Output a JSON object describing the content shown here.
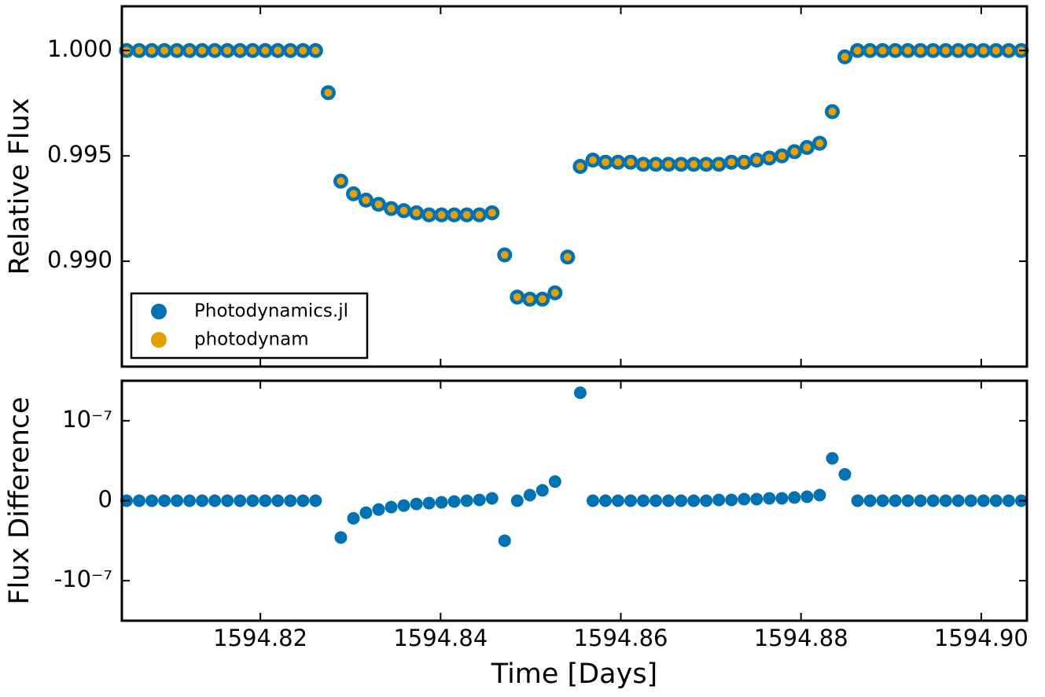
{
  "chart_data": [
    {
      "type": "scatter",
      "ylabel": "Relative Flux",
      "legend": "lower left",
      "xlim": [
        1594.80463,
        1594.90507
      ],
      "ylim": [
        0.985,
        1.0021
      ],
      "yticks": [
        {
          "value": 1.0,
          "label": "1.000"
        },
        {
          "value": 0.995,
          "label": "0.995"
        },
        {
          "value": 0.99,
          "label": "0.990"
        }
      ],
      "xticks": [
        1594.82,
        1594.84,
        1594.86,
        1594.88,
        1594.9
      ],
      "x": [
        1594.80515,
        1594.80655,
        1594.80795,
        1594.80935,
        1594.81074,
        1594.81214,
        1594.81354,
        1594.81494,
        1594.81634,
        1594.81774,
        1594.81914,
        1594.82054,
        1594.82193,
        1594.82333,
        1594.82473,
        1594.82613,
        1594.82753,
        1594.82893,
        1594.83033,
        1594.83172,
        1594.83312,
        1594.83452,
        1594.83592,
        1594.83732,
        1594.83872,
        1594.84011,
        1594.84151,
        1594.84291,
        1594.84431,
        1594.84571,
        1594.84711,
        1594.84851,
        1594.84991,
        1594.8513,
        1594.8527,
        1594.8541,
        1594.8555,
        1594.8569,
        1594.8583,
        1594.85969,
        1594.86109,
        1594.86249,
        1594.86389,
        1594.86529,
        1594.86669,
        1594.86809,
        1594.86948,
        1594.87088,
        1594.87228,
        1594.87368,
        1594.87508,
        1594.87648,
        1594.87788,
        1594.87927,
        1594.88067,
        1594.88207,
        1594.88347,
        1594.88487,
        1594.88627,
        1594.88766,
        1594.88906,
        1594.89046,
        1594.89186,
        1594.89326,
        1594.89466,
        1594.89606,
        1594.89745,
        1594.89885,
        1594.90025,
        1594.90165,
        1594.90305,
        1594.90445
      ],
      "series": [
        {
          "name": "Photodynamics.jl",
          "color": "#0072b2",
          "values": [
            1.0,
            1.0,
            1.0,
            1.0,
            1.0,
            1.0,
            1.0,
            1.0,
            1.0,
            1.0,
            1.0,
            1.0,
            1.0,
            1.0,
            1.0,
            1.0,
            0.998,
            0.9938,
            0.9932,
            0.9929,
            0.9927,
            0.9925,
            0.9924,
            0.9923,
            0.9922,
            0.9922,
            0.9922,
            0.9922,
            0.9922,
            0.9923,
            0.9903,
            0.9883,
            0.9882,
            0.9882,
            0.9885,
            0.9902,
            0.9945,
            0.9948,
            0.9947,
            0.9947,
            0.9947,
            0.9946,
            0.9946,
            0.9946,
            0.9946,
            0.9946,
            0.9946,
            0.9946,
            0.9947,
            0.9947,
            0.9948,
            0.9949,
            0.995,
            0.9952,
            0.9954,
            0.9956,
            0.9971,
            0.9997,
            1.0,
            1.0,
            1.0,
            1.0,
            1.0,
            1.0,
            1.0,
            1.0,
            1.0,
            1.0,
            1.0,
            1.0,
            1.0,
            1.0
          ]
        },
        {
          "name": "photodynam",
          "color": "#e69f00",
          "values": [
            1.0,
            1.0,
            1.0,
            1.0,
            1.0,
            1.0,
            1.0,
            1.0,
            1.0,
            1.0,
            1.0,
            1.0,
            1.0,
            1.0,
            1.0,
            1.0,
            0.998,
            0.9938,
            0.9932,
            0.9929,
            0.9927,
            0.9925,
            0.9924,
            0.9923,
            0.9922,
            0.9922,
            0.9922,
            0.9922,
            0.9922,
            0.9923,
            0.9903,
            0.9883,
            0.9882,
            0.9882,
            0.9885,
            0.9902,
            0.9945,
            0.9948,
            0.9947,
            0.9947,
            0.9947,
            0.9946,
            0.9946,
            0.9946,
            0.9946,
            0.9946,
            0.9946,
            0.9946,
            0.9947,
            0.9947,
            0.9948,
            0.9949,
            0.995,
            0.9952,
            0.9954,
            0.9956,
            0.9971,
            0.9997,
            1.0,
            1.0,
            1.0,
            1.0,
            1.0,
            1.0,
            1.0,
            1.0,
            1.0,
            1.0,
            1.0,
            1.0,
            1.0,
            1.0
          ]
        }
      ]
    },
    {
      "type": "scatter",
      "ylabel": "Flux Difference",
      "xlabel": "Time [Days]",
      "xlim": [
        1594.80463,
        1594.90507
      ],
      "ylim": [
        -1.5e-07,
        1.5e-07
      ],
      "yticks": [
        {
          "value": 1e-07,
          "label": "10⁻⁷"
        },
        0,
        {
          "value": -1e-07,
          "label": "-10⁻⁷"
        }
      ],
      "xticks": [
        {
          "value": 1594.82,
          "label": "1594.82"
        },
        {
          "value": 1594.84,
          "label": "1594.84"
        },
        {
          "value": 1594.86,
          "label": "1594.86"
        },
        {
          "value": 1594.88,
          "label": "1594.88"
        },
        {
          "value": 1594.9,
          "label": "1594.90"
        }
      ],
      "x": [
        1594.80515,
        1594.80655,
        1594.80795,
        1594.80935,
        1594.81074,
        1594.81214,
        1594.81354,
        1594.81494,
        1594.81634,
        1594.81774,
        1594.81914,
        1594.82054,
        1594.82193,
        1594.82333,
        1594.82473,
        1594.82613,
        1594.82753,
        1594.82893,
        1594.83033,
        1594.83172,
        1594.83312,
        1594.83452,
        1594.83592,
        1594.83732,
        1594.83872,
        1594.84011,
        1594.84151,
        1594.84291,
        1594.84431,
        1594.84571,
        1594.84711,
        1594.84851,
        1594.84991,
        1594.8513,
        1594.8527,
        1594.8541,
        1594.8555,
        1594.8569,
        1594.8583,
        1594.85969,
        1594.86109,
        1594.86249,
        1594.86389,
        1594.86529,
        1594.86669,
        1594.86809,
        1594.86948,
        1594.87088,
        1594.87228,
        1594.87368,
        1594.87508,
        1594.87648,
        1594.87788,
        1594.87927,
        1594.88067,
        1594.88207,
        1594.88347,
        1594.88487,
        1594.88627,
        1594.88766,
        1594.88906,
        1594.89046,
        1594.89186,
        1594.89326,
        1594.89466,
        1594.89606,
        1594.89745,
        1594.89885,
        1594.90025,
        1594.90165,
        1594.90305,
        1594.90445
      ],
      "series": [
        {
          "color": "#0072b2",
          "values": [
            0,
            0,
            0,
            0,
            0,
            0,
            0,
            0,
            0,
            0,
            0,
            0,
            0,
            0,
            0,
            0,
            null,
            -4.6e-08,
            -2.2e-08,
            -1.5e-08,
            -1.1e-08,
            -8e-09,
            -6e-09,
            -4e-09,
            -3e-09,
            -2e-09,
            -1e-09,
            0,
            1e-09,
            3e-09,
            -5e-08,
            0,
            7e-09,
            1.3e-08,
            2.4e-08,
            null,
            1.35e-07,
            0,
            0,
            0,
            0,
            0,
            0,
            0,
            0,
            0,
            0,
            1e-09,
            1e-09,
            2e-09,
            2e-09,
            3e-09,
            3e-09,
            4e-09,
            5e-09,
            7e-09,
            5.3e-08,
            3.3e-08,
            0,
            0,
            0,
            0,
            0,
            0,
            0,
            0,
            0,
            0,
            0,
            0,
            0,
            0
          ]
        }
      ]
    }
  ]
}
